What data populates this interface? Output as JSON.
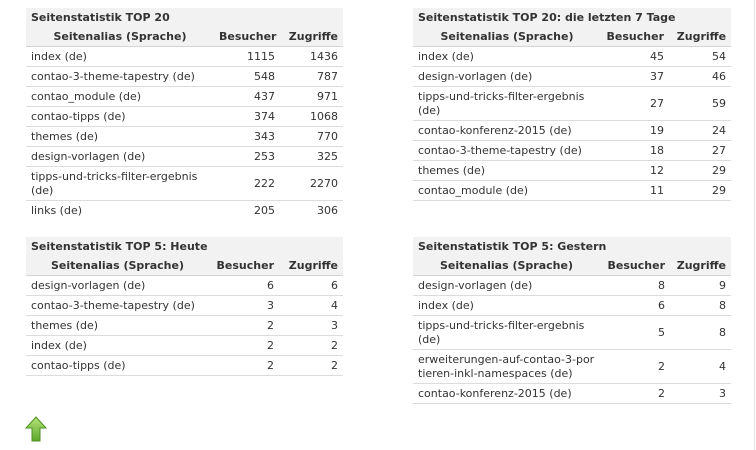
{
  "tables": [
    {
      "title": "Seitenstatistik TOP 20",
      "col_alias": "Seitenalias (Sprache)",
      "col_visitors": "Besucher",
      "col_hits": "Zugriffe",
      "rows": [
        {
          "alias": "index (de)",
          "visitors": "1115",
          "hits": "1436"
        },
        {
          "alias": "contao-3-theme-tapestry (de)",
          "visitors": "548",
          "hits": "787"
        },
        {
          "alias": "contao_module (de)",
          "visitors": "437",
          "hits": "971"
        },
        {
          "alias": "contao-tipps (de)",
          "visitors": "374",
          "hits": "1068"
        },
        {
          "alias": "themes (de)",
          "visitors": "343",
          "hits": "770"
        },
        {
          "alias": "design-vorlagen (de)",
          "visitors": "253",
          "hits": "325"
        },
        {
          "alias": "tipps-und-tricks-filter-ergebnis (de)",
          "visitors": "222",
          "hits": "2270"
        },
        {
          "alias": "links (de)",
          "visitors": "205",
          "hits": "306"
        }
      ]
    },
    {
      "title": "Seitenstatistik TOP 20: die letzten 7 Tage",
      "col_alias": "Seitenalias (Sprache)",
      "col_visitors": "Besucher",
      "col_hits": "Zugriffe",
      "rows": [
        {
          "alias": "index (de)",
          "visitors": "45",
          "hits": "54"
        },
        {
          "alias": "design-vorlagen (de)",
          "visitors": "37",
          "hits": "46"
        },
        {
          "alias": "tipps-und-tricks-filter-ergebnis (de)",
          "visitors": "27",
          "hits": "59"
        },
        {
          "alias": "contao-konferenz-2015 (de)",
          "visitors": "19",
          "hits": "24"
        },
        {
          "alias": "contao-3-theme-tapestry (de)",
          "visitors": "18",
          "hits": "27"
        },
        {
          "alias": "themes (de)",
          "visitors": "12",
          "hits": "29"
        },
        {
          "alias": "contao_module (de)",
          "visitors": "11",
          "hits": "29"
        }
      ]
    },
    {
      "title": "Seitenstatistik TOP 5: Heute",
      "col_alias": "Seitenalias (Sprache)",
      "col_visitors": "Besucher",
      "col_hits": "Zugriffe",
      "rows": [
        {
          "alias": "design-vorlagen (de)",
          "visitors": "6",
          "hits": "6"
        },
        {
          "alias": "contao-3-theme-tapestry (de)",
          "visitors": "3",
          "hits": "4"
        },
        {
          "alias": "themes (de)",
          "visitors": "2",
          "hits": "3"
        },
        {
          "alias": "index (de)",
          "visitors": "2",
          "hits": "2"
        },
        {
          "alias": "contao-tipps (de)",
          "visitors": "2",
          "hits": "2"
        }
      ]
    },
    {
      "title": "Seitenstatistik TOP 5: Gestern",
      "col_alias": "Seitenalias (Sprache)",
      "col_visitors": "Besucher",
      "col_hits": "Zugriffe",
      "rows": [
        {
          "alias": "design-vorlagen (de)",
          "visitors": "8",
          "hits": "9"
        },
        {
          "alias": "index (de)",
          "visitors": "6",
          "hits": "8"
        },
        {
          "alias": "tipps-und-tricks-filter-ergebnis (de)",
          "visitors": "5",
          "hits": "8"
        },
        {
          "alias": "erweiterungen-auf-contao-3-portieren-inkl-namespaces (de)",
          "visitors": "2",
          "hits": "4"
        },
        {
          "alias": "contao-konferenz-2015 (de)",
          "visitors": "2",
          "hits": "3"
        }
      ]
    }
  ],
  "top_link": {
    "icon": "up-arrow-icon",
    "color": "#7cc242"
  }
}
